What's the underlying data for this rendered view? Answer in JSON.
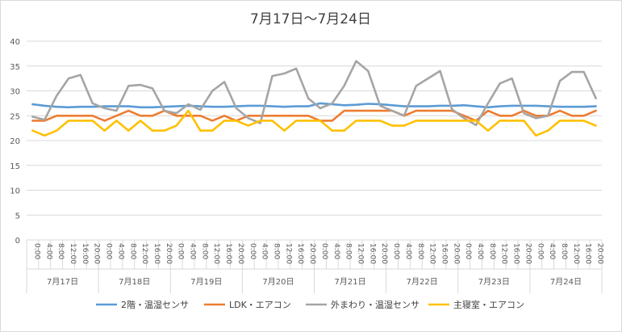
{
  "chart_data": {
    "type": "line",
    "title": "7月17日～7月24日",
    "xlabel": "",
    "ylabel": "",
    "ylim": [
      0,
      40
    ],
    "yticks": [
      0,
      5,
      10,
      15,
      20,
      25,
      30,
      35,
      40
    ],
    "grid": true,
    "legend_position": "bottom",
    "x_time_labels": [
      "0:00",
      "4:00",
      "8:00",
      "12:00",
      "16:00",
      "20:00"
    ],
    "days": [
      "7月17日",
      "7月18日",
      "7月19日",
      "7月20日",
      "7月21日",
      "7月22日",
      "7月23日",
      "7月24日"
    ],
    "series": [
      {
        "name": "2階・温湿センサ",
        "color": "#5b9bd5",
        "values": [
          27.3,
          27,
          26.8,
          26.7,
          26.8,
          26.8,
          26.9,
          26.9,
          26.9,
          26.7,
          26.7,
          26.8,
          26.9,
          27,
          26.9,
          26.8,
          26.8,
          26.9,
          27,
          27,
          26.9,
          26.8,
          26.9,
          26.9,
          27.5,
          27.3,
          27.1,
          27.2,
          27.4,
          27.3,
          27.1,
          26.9,
          26.9,
          26.9,
          27,
          27,
          27.1,
          26.9,
          26.7,
          26.9,
          27,
          27,
          27,
          26.9,
          26.8,
          26.8,
          26.8,
          26.9
        ]
      },
      {
        "name": "LDK・エアコン",
        "color": "#ed7d31",
        "values": [
          24,
          24,
          25,
          25,
          25,
          25,
          24,
          25,
          26,
          25,
          25,
          26,
          25,
          25,
          25,
          24,
          25,
          24,
          25,
          25,
          25,
          25,
          25,
          25,
          24,
          24,
          26,
          26,
          26,
          26,
          26,
          25,
          26,
          26,
          26,
          26,
          25,
          24,
          26,
          25,
          25,
          26,
          25,
          25,
          26,
          25,
          25,
          26
        ]
      },
      {
        "name": "外まわり・温湿センサ",
        "color": "#a5a5a5",
        "values": [
          24.8,
          24.2,
          29,
          32.5,
          33.2,
          27.5,
          26.5,
          26,
          31,
          31.2,
          30.5,
          26,
          25.5,
          27.3,
          26.2,
          30,
          31.8,
          26.5,
          24.5,
          23.5,
          33,
          33.5,
          34.5,
          28.5,
          26.5,
          27.5,
          31,
          36,
          34,
          27,
          26,
          25,
          31,
          32.5,
          34,
          26.3,
          24.5,
          23.1,
          27.5,
          31.5,
          32.5,
          25.5,
          24.5,
          25,
          32,
          33.8,
          33.8,
          28.5
        ]
      },
      {
        "name": "主寝室・エアコン",
        "color": "#ffc000",
        "values": [
          22,
          21,
          22,
          24,
          24,
          24,
          22,
          24,
          22,
          24,
          22,
          22,
          23,
          26,
          22,
          22,
          24,
          24,
          23,
          24,
          24,
          22,
          24,
          24,
          24,
          22,
          22,
          24,
          24,
          24,
          23,
          23,
          24,
          24,
          24,
          24,
          24,
          24,
          22,
          24,
          24,
          24,
          21,
          22,
          24,
          24,
          24,
          23
        ]
      }
    ]
  }
}
